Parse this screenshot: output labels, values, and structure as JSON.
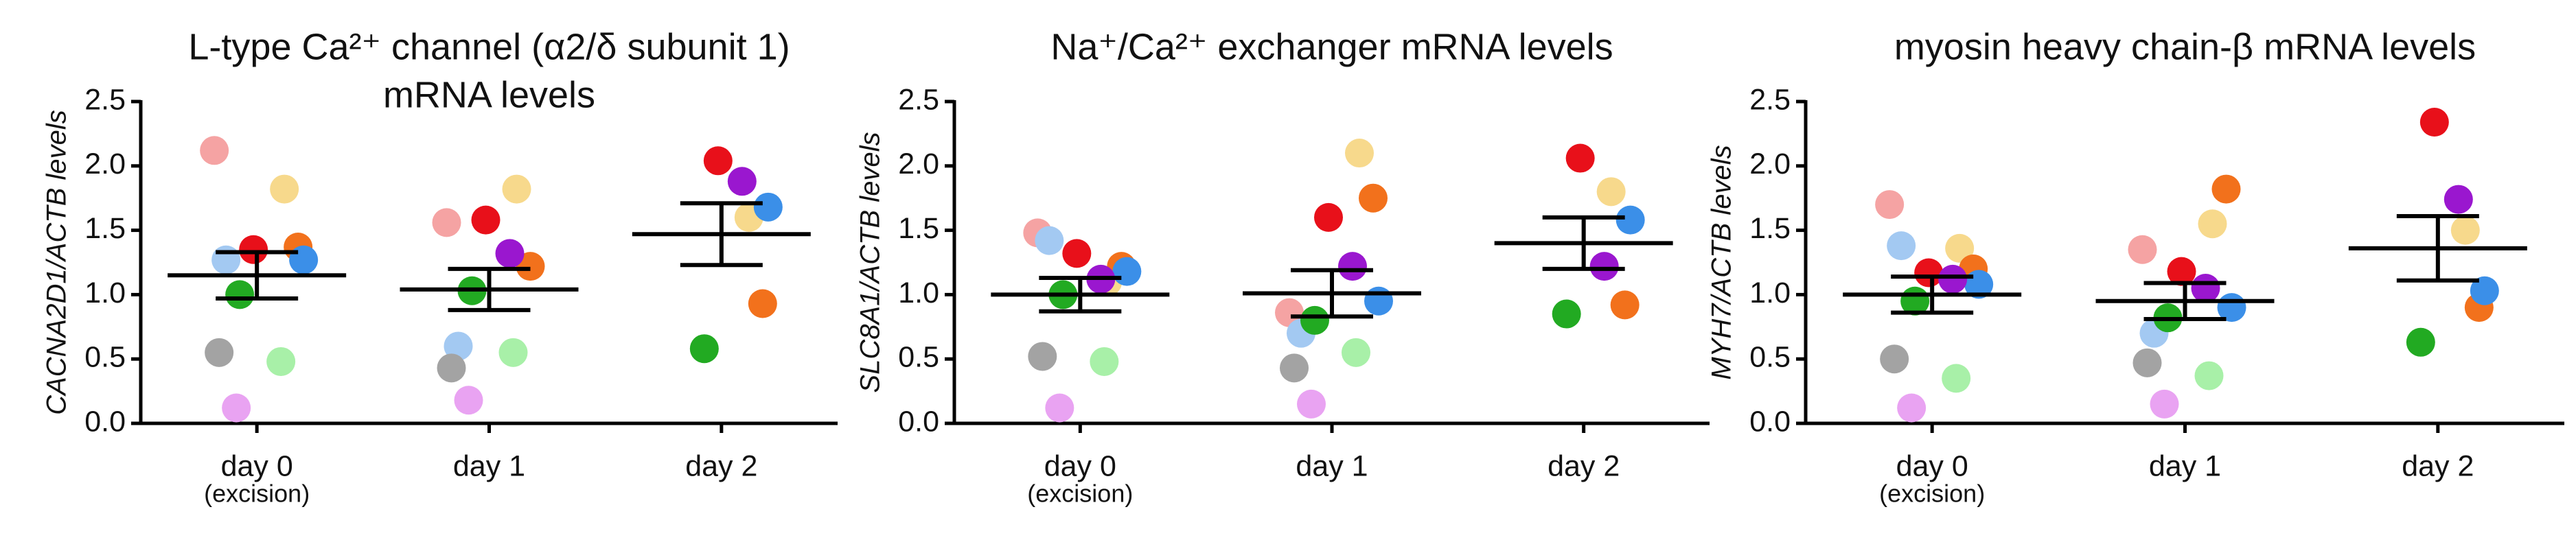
{
  "chart_data": [
    {
      "type": "dotplot",
      "title": [
        "L-type Ca²⁺ channel (α2/δ subunit 1)",
        "mRNA levels"
      ],
      "ylabel": "CACNA2D1/ACTB levels",
      "categories": [
        "day 0",
        "day 1",
        "day 2"
      ],
      "category_notes": [
        "(excision)",
        null,
        null
      ],
      "ylim": [
        0,
        2.5
      ],
      "yticks": [
        {
          "value": 0,
          "label": "0.0"
        },
        0.5,
        {
          "value": 1,
          "label": "1.0"
        },
        1.5,
        {
          "value": 2,
          "label": "2.0"
        },
        2.5
      ],
      "means": [
        1.15,
        1.04,
        1.47
      ],
      "errors": [
        0.18,
        0.16,
        0.24
      ],
      "series": [
        {
          "color": "#f5a3a3",
          "values": [
            2.12,
            1.56,
            null
          ]
        },
        {
          "color": "#f7d98c",
          "values": [
            1.82,
            1.82,
            1.6
          ]
        },
        {
          "color": "#e8101a",
          "values": [
            1.35,
            1.58,
            2.04
          ]
        },
        {
          "color": "#f2711c",
          "values": [
            1.37,
            1.22,
            0.93
          ]
        },
        {
          "color": "#a3c9f2",
          "values": [
            1.27,
            0.6,
            null
          ]
        },
        {
          "color": "#3b8fe8",
          "values": [
            1.27,
            null,
            1.68
          ]
        },
        {
          "color": "#9a17cf",
          "values": [
            null,
            1.32,
            1.88
          ]
        },
        {
          "color": "#22aa22",
          "values": [
            1.0,
            1.03,
            0.58
          ]
        },
        {
          "color": "#a3a3a3",
          "values": [
            0.55,
            0.43,
            null
          ]
        },
        {
          "color": "#a8f0a8",
          "values": [
            0.48,
            0.55,
            null
          ]
        },
        {
          "color": "#e9a3f2",
          "values": [
            0.12,
            0.18,
            null
          ]
        }
      ]
    },
    {
      "type": "dotplot",
      "title": [
        "Na⁺/Ca²⁺ exchanger mRNA levels"
      ],
      "ylabel": "SLC8A1/ACTB levels",
      "categories": [
        "day 0",
        "day 1",
        "day 2"
      ],
      "category_notes": [
        "(excision)",
        null,
        null
      ],
      "ylim": [
        0,
        2.5
      ],
      "yticks": [
        {
          "value": 0,
          "label": "0.0"
        },
        0.5,
        {
          "value": 1,
          "label": "1.0"
        },
        1.5,
        {
          "value": 2,
          "label": "2.0"
        },
        2.5
      ],
      "means": [
        1.0,
        1.01,
        1.4
      ],
      "errors": [
        0.13,
        0.18,
        0.2
      ],
      "series": [
        {
          "color": "#f5a3a3",
          "values": [
            1.48,
            0.86,
            null
          ]
        },
        {
          "color": "#f7d98c",
          "values": [
            1.1,
            2.1,
            1.8
          ]
        },
        {
          "color": "#e8101a",
          "values": [
            1.32,
            1.6,
            2.06
          ]
        },
        {
          "color": "#f2711c",
          "values": [
            1.22,
            1.75,
            0.92
          ]
        },
        {
          "color": "#a3c9f2",
          "values": [
            1.42,
            0.7,
            null
          ]
        },
        {
          "color": "#3b8fe8",
          "values": [
            1.18,
            0.95,
            1.58
          ]
        },
        {
          "color": "#9a17cf",
          "values": [
            1.12,
            1.22,
            1.22
          ]
        },
        {
          "color": "#22aa22",
          "values": [
            1.0,
            0.8,
            0.85
          ]
        },
        {
          "color": "#a3a3a3",
          "values": [
            0.52,
            0.43,
            null
          ]
        },
        {
          "color": "#a8f0a8",
          "values": [
            0.48,
            0.55,
            null
          ]
        },
        {
          "color": "#e9a3f2",
          "values": [
            0.12,
            0.15,
            null
          ]
        }
      ]
    },
    {
      "type": "dotplot",
      "title": [
        "myosin heavy chain-β mRNA levels"
      ],
      "ylabel": "MYH7/ACTB levels",
      "categories": [
        "day 0",
        "day 1",
        "day 2"
      ],
      "category_notes": [
        "(excision)",
        null,
        null
      ],
      "ylim": [
        0,
        2.5
      ],
      "yticks": [
        {
          "value": 0,
          "label": "0.0"
        },
        0.5,
        {
          "value": 1,
          "label": "1.0"
        },
        1.5,
        {
          "value": 2,
          "label": "2.0"
        },
        2.5
      ],
      "means": [
        1.0,
        0.95,
        1.36
      ],
      "errors": [
        0.14,
        0.14,
        0.25
      ],
      "series": [
        {
          "color": "#f5a3a3",
          "values": [
            1.7,
            1.35,
            null
          ]
        },
        {
          "color": "#f7d98c",
          "values": [
            1.36,
            1.55,
            1.5
          ]
        },
        {
          "color": "#e8101a",
          "values": [
            1.17,
            1.18,
            2.34
          ]
        },
        {
          "color": "#f2711c",
          "values": [
            1.2,
            1.82,
            0.9
          ]
        },
        {
          "color": "#a3c9f2",
          "values": [
            1.38,
            0.7,
            null
          ]
        },
        {
          "color": "#3b8fe8",
          "values": [
            1.08,
            0.9,
            1.03
          ]
        },
        {
          "color": "#9a17cf",
          "values": [
            1.12,
            1.05,
            1.74
          ]
        },
        {
          "color": "#22aa22",
          "values": [
            0.95,
            0.82,
            0.63
          ]
        },
        {
          "color": "#a3a3a3",
          "values": [
            0.5,
            0.47,
            null
          ]
        },
        {
          "color": "#a8f0a8",
          "values": [
            0.35,
            0.37,
            null
          ]
        },
        {
          "color": "#e9a3f2",
          "values": [
            0.12,
            0.15,
            null
          ]
        }
      ]
    }
  ]
}
